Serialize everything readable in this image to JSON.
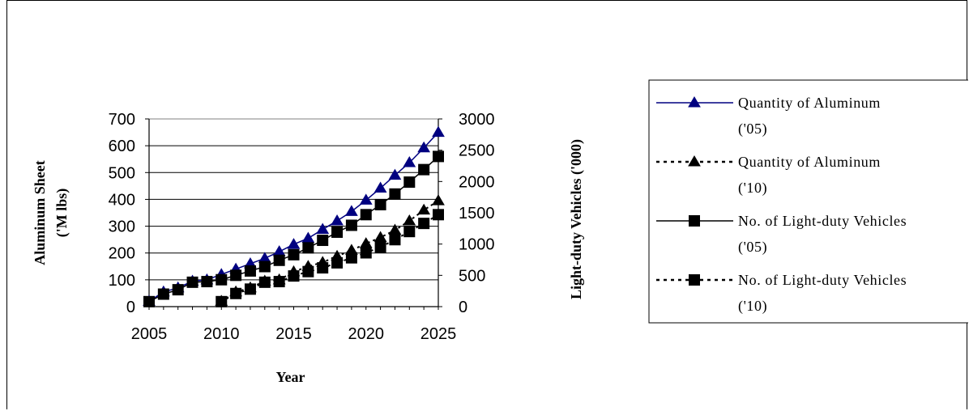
{
  "chart_data": {
    "type": "line",
    "x": [
      2005,
      2006,
      2007,
      2008,
      2009,
      2010,
      2011,
      2012,
      2013,
      2014,
      2015,
      2016,
      2017,
      2018,
      2019,
      2020,
      2021,
      2022,
      2023,
      2024,
      2025
    ],
    "xlim": [
      2005,
      2025
    ],
    "x_ticks": [
      "2005",
      "2010",
      "2015",
      "2020",
      "2025"
    ],
    "xlabel": "Year",
    "ylabel": "Aluminum Sheet ('M lbs)",
    "ylabel_lines": [
      "Aluminum Sheet",
      "('M lbs)"
    ],
    "ylim": [
      0,
      700
    ],
    "y_ticks": [
      "0",
      "100",
      "200",
      "300",
      "400",
      "500",
      "600",
      "700"
    ],
    "y2label": "Light-duty Vehicles ('000)",
    "y2lim": [
      0,
      3000
    ],
    "y2_ticks": [
      "0",
      "500",
      "1000",
      "1500",
      "2000",
      "2500",
      "3000"
    ],
    "grid": true,
    "legend_position": "right",
    "series": [
      {
        "name": "Quantity of Aluminum ('05)",
        "legend_lines": [
          "Quantity of Aluminum",
          "('05)"
        ],
        "axis": "left",
        "marker": "triangle",
        "line": "solid",
        "color": "#000080",
        "x": [
          2005,
          2006,
          2007,
          2008,
          2009,
          2010,
          2011,
          2012,
          2013,
          2014,
          2015,
          2016,
          2017,
          2018,
          2019,
          2020,
          2021,
          2022,
          2023,
          2024,
          2025
        ],
        "values": [
          20,
          55,
          70,
          95,
          100,
          120,
          140,
          160,
          180,
          205,
          232,
          255,
          288,
          320,
          355,
          397,
          442,
          490,
          537,
          592,
          650
        ]
      },
      {
        "name": "Quantity of Aluminum ('10)",
        "legend_lines": [
          "Quantity of Aluminum",
          "('10)"
        ],
        "axis": "left",
        "marker": "triangle",
        "line": "dotted",
        "color": "#000000",
        "x": [
          2010,
          2011,
          2012,
          2013,
          2014,
          2015,
          2016,
          2017,
          2018,
          2019,
          2020,
          2021,
          2022,
          2023,
          2024,
          2025
        ],
        "values": [
          20,
          55,
          70,
          95,
          100,
          130,
          150,
          165,
          188,
          210,
          235,
          258,
          285,
          320,
          360,
          395
        ]
      },
      {
        "name": "No. of Light-duty Vehicles ('05)",
        "legend_lines": [
          "No. of Light-duty Vehicles",
          "('05)"
        ],
        "axis": "right",
        "marker": "square",
        "line": "solid",
        "color": "#000000",
        "x": [
          2005,
          2006,
          2007,
          2008,
          2009,
          2010,
          2011,
          2012,
          2013,
          2014,
          2015,
          2016,
          2017,
          2018,
          2019,
          2020,
          2021,
          2022,
          2023,
          2024,
          2025
        ],
        "values": [
          80,
          200,
          270,
          390,
          400,
          430,
          500,
          570,
          640,
          740,
          830,
          940,
          1060,
          1190,
          1300,
          1470,
          1630,
          1800,
          1990,
          2190,
          2400
        ]
      },
      {
        "name": "No. of Light-duty Vehicles ('10)",
        "legend_lines": [
          "No. of Light-duty Vehicles",
          "('10)"
        ],
        "axis": "right",
        "marker": "square",
        "line": "dotted",
        "color": "#000000",
        "x": [
          2010,
          2011,
          2012,
          2013,
          2014,
          2015,
          2016,
          2017,
          2018,
          2019,
          2020,
          2021,
          2022,
          2023,
          2024,
          2025
        ],
        "values": [
          80,
          210,
          280,
          390,
          400,
          490,
          560,
          620,
          700,
          780,
          860,
          950,
          1070,
          1200,
          1330,
          1470
        ]
      }
    ]
  }
}
